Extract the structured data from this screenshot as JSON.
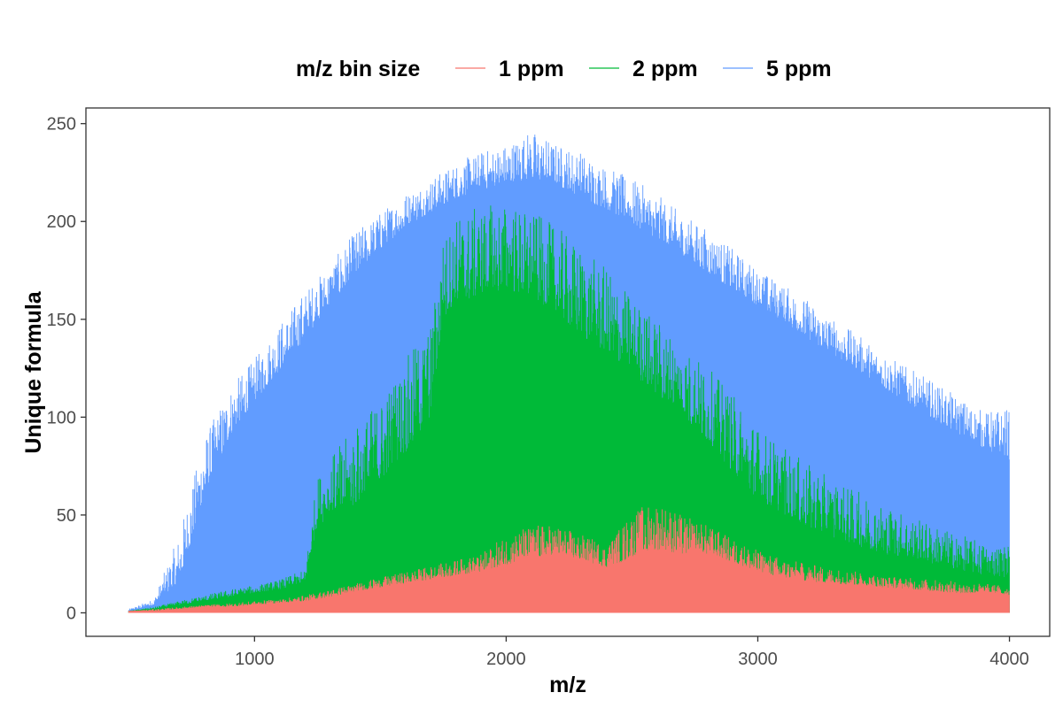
{
  "chart_data": {
    "type": "area",
    "title": "",
    "xlabel": "m/z",
    "ylabel": "Unique formula",
    "xlim": [
      330,
      4160
    ],
    "ylim": [
      -12,
      258
    ],
    "x_ticks": [
      1000,
      2000,
      3000,
      4000
    ],
    "y_ticks": [
      0,
      50,
      100,
      150,
      200,
      250
    ],
    "grid": false,
    "legend": {
      "title": "m/z bin size",
      "position": "top",
      "entries": [
        "1 ppm",
        "2 ppm",
        "5 ppm"
      ]
    },
    "series": [
      {
        "name": "5 ppm",
        "color": "#619CFF",
        "x": [
          500,
          600,
          700,
          800,
          900,
          1000,
          1100,
          1200,
          1300,
          1400,
          1500,
          1600,
          1700,
          1800,
          1900,
          2000,
          2100,
          2200,
          2300,
          2400,
          2500,
          2600,
          2700,
          2800,
          2900,
          3000,
          3100,
          3200,
          3300,
          3400,
          3500,
          3600,
          3700,
          3800,
          3900,
          4000
        ],
        "values": [
          1,
          4,
          15,
          60,
          90,
          108,
          124,
          140,
          158,
          172,
          186,
          197,
          205,
          212,
          216,
          219,
          222,
          219,
          212,
          206,
          199,
          191,
          183,
          174,
          165,
          157,
          149,
          140,
          132,
          124,
          115,
          107,
          99,
          91,
          84,
          78
        ],
        "peaks": [
          2,
          7,
          40,
          90,
          115,
          130,
          148,
          165,
          178,
          195,
          205,
          215,
          222,
          230,
          236,
          240,
          247,
          240,
          236,
          228,
          222,
          214,
          204,
          196,
          186,
          176,
          168,
          160,
          150,
          142,
          133,
          125,
          118,
          110,
          103,
          105
        ]
      },
      {
        "name": "2 ppm",
        "color": "#00BA38",
        "x": [
          500,
          600,
          700,
          800,
          900,
          1000,
          1100,
          1200,
          1250,
          1300,
          1400,
          1500,
          1600,
          1700,
          1750,
          1800,
          1900,
          2000,
          2100,
          2200,
          2300,
          2400,
          2500,
          2600,
          2700,
          2800,
          2900,
          3000,
          3100,
          3200,
          3300,
          3400,
          3500,
          3600,
          3700,
          3800,
          3900,
          4000
        ],
        "values": [
          1,
          2,
          4,
          6,
          8,
          10,
          12,
          15,
          45,
          48,
          55,
          68,
          82,
          100,
          150,
          158,
          162,
          165,
          162,
          152,
          142,
          132,
          122,
          112,
          100,
          88,
          72,
          58,
          50,
          44,
          38,
          34,
          30,
          28,
          25,
          22,
          19,
          18
        ],
        "peaks": [
          1,
          3,
          6,
          9,
          12,
          14,
          17,
          22,
          70,
          80,
          95,
          110,
          130,
          148,
          192,
          203,
          208,
          210,
          205,
          198,
          186,
          176,
          162,
          150,
          138,
          126,
          112,
          96,
          85,
          76,
          68,
          62,
          56,
          50,
          45,
          40,
          36,
          35
        ]
      },
      {
        "name": "1 ppm",
        "color": "#F8766D",
        "x": [
          500,
          600,
          700,
          800,
          900,
          1000,
          1100,
          1200,
          1300,
          1400,
          1500,
          1600,
          1700,
          1800,
          1900,
          2000,
          2100,
          2200,
          2300,
          2400,
          2500,
          2600,
          2700,
          2800,
          2900,
          3000,
          3100,
          3200,
          3300,
          3400,
          3500,
          3600,
          3700,
          3800,
          3900,
          4000
        ],
        "values": [
          1,
          1,
          2,
          3,
          3,
          4,
          5,
          6,
          8,
          11,
          13,
          15,
          17,
          19,
          21,
          24,
          28,
          30,
          27,
          23,
          28,
          32,
          30,
          30,
          26,
          21,
          18,
          16,
          15,
          14,
          13,
          12,
          11,
          10,
          10,
          9
        ],
        "peaks": [
          1,
          2,
          3,
          4,
          5,
          6,
          7,
          9,
          12,
          15,
          18,
          21,
          24,
          27,
          30,
          40,
          45,
          45,
          40,
          35,
          52,
          58,
          50,
          45,
          38,
          32,
          28,
          25,
          23,
          21,
          19,
          18,
          17,
          16,
          15,
          14
        ]
      }
    ]
  }
}
